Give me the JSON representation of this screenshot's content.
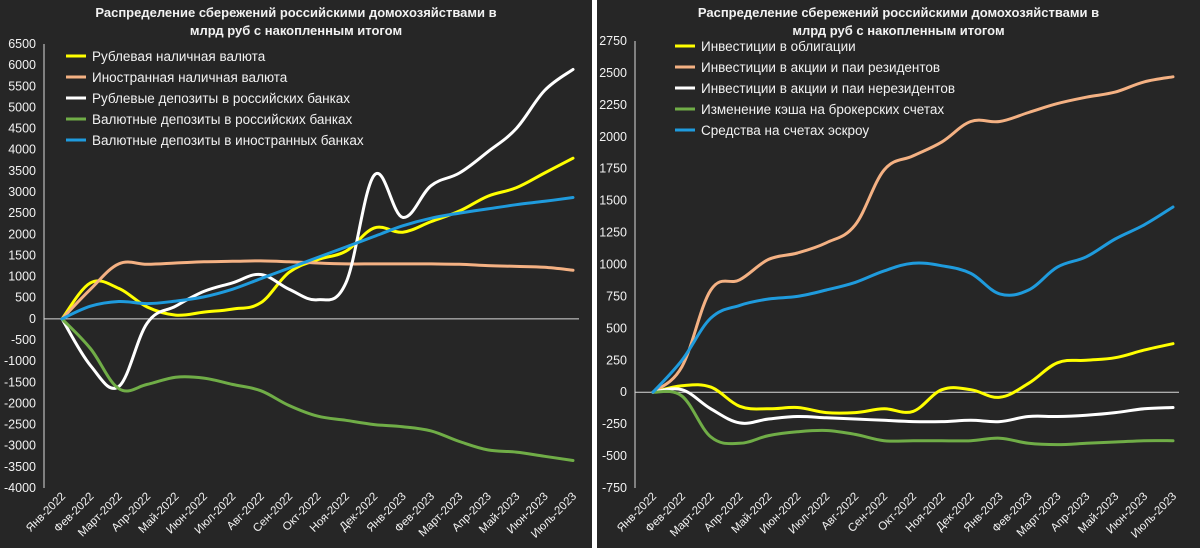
{
  "chart_data": [
    {
      "type": "line",
      "title": "Распределение сбережений российскими домохозяйствами в млрд руб с накопленным итогом",
      "title_lines": [
        "Распределение сбережений российскими домохозяйствами в",
        "млрд руб с накопленным итогом"
      ],
      "categories": [
        "Янв-2022",
        "Фев-2022",
        "Март-2022",
        "Апр-2022",
        "Май-2022",
        "Июн-2022",
        "Июл-2022",
        "Авг-2022",
        "Сен-2022",
        "Окт-2022",
        "Ноя-2022",
        "Дек-2022",
        "Янв-2023",
        "Фев-2023",
        "Март-2023",
        "Апр-2023",
        "Май-2023",
        "Июн-2023",
        "Июль-2023"
      ],
      "ylim": [
        -4000,
        6500
      ],
      "yticks": [
        -4000,
        -3500,
        -3000,
        -2500,
        -2000,
        -1500,
        -1000,
        -500,
        0,
        500,
        1000,
        1500,
        2000,
        2500,
        3000,
        3500,
        4000,
        4500,
        5000,
        5500,
        6000,
        6500
      ],
      "legend_position": "top-left",
      "grid": false,
      "series": [
        {
          "name": "Рублевая наличная валюта",
          "color": "#ffff00",
          "values": [
            0,
            850,
            720,
            280,
            90,
            160,
            230,
            380,
            1100,
            1400,
            1600,
            2150,
            2050,
            2300,
            2550,
            2900,
            3100,
            3450,
            3800
          ]
        },
        {
          "name": "Иностранная наличная валюта",
          "color": "#f4b183",
          "values": [
            0,
            700,
            1300,
            1290,
            1320,
            1350,
            1360,
            1370,
            1350,
            1320,
            1300,
            1300,
            1300,
            1300,
            1290,
            1260,
            1240,
            1220,
            1150
          ]
        },
        {
          "name": "Рублевые депозиты в российских банках",
          "color": "#ffffff",
          "values": [
            0,
            -1100,
            -1600,
            -100,
            300,
            650,
            850,
            1050,
            700,
            450,
            850,
            3400,
            2400,
            3150,
            3450,
            3950,
            4500,
            5400,
            5900
          ]
        },
        {
          "name": "Валютные депозиты в российских банках",
          "color": "#70ad47",
          "values": [
            0,
            -700,
            -1650,
            -1550,
            -1380,
            -1400,
            -1550,
            -1700,
            -2050,
            -2300,
            -2400,
            -2500,
            -2550,
            -2650,
            -2900,
            -3100,
            -3150,
            -3250,
            -3350
          ]
        },
        {
          "name": "Валютные депозиты в иностранных банках",
          "color": "#1f9bdd",
          "values": [
            0,
            300,
            410,
            360,
            420,
            520,
            700,
            950,
            1200,
            1450,
            1700,
            1950,
            2200,
            2380,
            2500,
            2600,
            2700,
            2780,
            2870
          ]
        }
      ]
    },
    {
      "type": "line",
      "title": "Распределение сбережений российскими домохозяйствами в млрд руб с накопленным итогом",
      "title_lines": [
        "Распределение сбережений российскими домохозяйствами в",
        "млрд руб с накопленным итогом"
      ],
      "categories": [
        "Янв-2022",
        "Фев-2022",
        "Март-2022",
        "Апр-2022",
        "Май-2022",
        "Июн-2022",
        "Июл-2022",
        "Авг-2022",
        "Сен-2022",
        "Окт-2022",
        "Ноя-2022",
        "Дек-2022",
        "Янв-2023",
        "Фев-2023",
        "Март-2023",
        "Апр-2023",
        "Май-2023",
        "Июн-2023",
        "Июль-2023"
      ],
      "ylim": [
        -750,
        2750
      ],
      "yticks": [
        -750,
        -500,
        -250,
        0,
        250,
        500,
        750,
        1000,
        1250,
        1500,
        1750,
        2000,
        2250,
        2500,
        2750
      ],
      "legend_position": "top-left",
      "grid": false,
      "series": [
        {
          "name": "Инвестиции в облигации",
          "color": "#ffff00",
          "values": [
            0,
            50,
            40,
            -110,
            -130,
            -120,
            -160,
            -160,
            -130,
            -150,
            20,
            20,
            -40,
            70,
            230,
            250,
            270,
            330,
            380
          ]
        },
        {
          "name": "Инвестиции в акции и паи резидентов",
          "color": "#f4b183",
          "values": [
            0,
            200,
            800,
            880,
            1040,
            1090,
            1170,
            1310,
            1740,
            1850,
            1960,
            2120,
            2120,
            2190,
            2260,
            2310,
            2350,
            2430,
            2470
          ]
        },
        {
          "name": "Инвестиции в акции и паи нерезидентов",
          "color": "#ffffff",
          "values": [
            0,
            20,
            -130,
            -240,
            -210,
            -190,
            -200,
            -210,
            -220,
            -230,
            -230,
            -220,
            -230,
            -190,
            -190,
            -180,
            -160,
            -130,
            -120
          ]
        },
        {
          "name": "Изменение кэша на брокерских счетах",
          "color": "#70ad47",
          "values": [
            0,
            -30,
            -350,
            -400,
            -340,
            -310,
            -300,
            -330,
            -380,
            -380,
            -380,
            -380,
            -360,
            -400,
            -410,
            -400,
            -390,
            -380,
            -380
          ]
        },
        {
          "name": "Средства на счетах эскроу",
          "color": "#1f9bdd",
          "values": [
            0,
            250,
            580,
            680,
            730,
            750,
            800,
            860,
            950,
            1010,
            990,
            930,
            770,
            800,
            980,
            1060,
            1200,
            1310,
            1450
          ]
        }
      ]
    }
  ]
}
